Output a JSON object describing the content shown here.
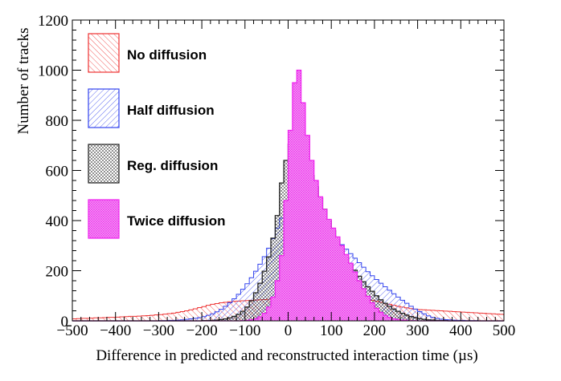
{
  "chart_data": {
    "type": "histogram",
    "title": "",
    "xlabel": "Difference in predicted and reconstructed interaction time (µs)",
    "ylabel": "Number of tracks",
    "xlim": [
      -500,
      500
    ],
    "ylim": [
      0,
      1200
    ],
    "x_ticks": [
      "−500",
      "−400",
      "−300",
      "−200",
      "−100",
      "0",
      "100",
      "200",
      "300",
      "400",
      "500"
    ],
    "y_ticks": [
      "0",
      "200",
      "400",
      "600",
      "800",
      "1000",
      "1200"
    ],
    "grid": false,
    "legend_position": "top-left",
    "bin_width": 10,
    "bin_centers": [
      -495,
      -485,
      -475,
      -465,
      -455,
      -445,
      -435,
      -425,
      -415,
      -405,
      -395,
      -385,
      -375,
      -365,
      -355,
      -345,
      -335,
      -325,
      -315,
      -305,
      -295,
      -285,
      -275,
      -265,
      -255,
      -245,
      -235,
      -225,
      -215,
      -205,
      -195,
      -185,
      -175,
      -165,
      -155,
      -145,
      -135,
      -125,
      -115,
      -105,
      -95,
      -85,
      -75,
      -65,
      -55,
      -45,
      -35,
      -25,
      -15,
      -5,
      5,
      15,
      25,
      35,
      45,
      55,
      65,
      75,
      85,
      95,
      105,
      115,
      125,
      135,
      145,
      155,
      165,
      175,
      185,
      195,
      205,
      215,
      225,
      235,
      245,
      255,
      265,
      275,
      285,
      295,
      305,
      315,
      325,
      335,
      345,
      355,
      365,
      375,
      385,
      395,
      405,
      415,
      425,
      435,
      445,
      455,
      465,
      475,
      485,
      495
    ],
    "series": [
      {
        "name": "No diffusion",
        "color": "#ee3333",
        "values": [
          8,
          9,
          10,
          10,
          11,
          12,
          12,
          13,
          14,
          14,
          15,
          16,
          17,
          18,
          18,
          19,
          20,
          21,
          22,
          24,
          25,
          27,
          29,
          31,
          34,
          37,
          40,
          44,
          48,
          53,
          57,
          62,
          66,
          69,
          72,
          74,
          76,
          78,
          79,
          80,
          81,
          82,
          83,
          84,
          85,
          86,
          87,
          88,
          90,
          92,
          94,
          96,
          98,
          100,
          102,
          104,
          106,
          107,
          108,
          108,
          107,
          106,
          104,
          102,
          100,
          97,
          94,
          90,
          86,
          82,
          78,
          74,
          70,
          66,
          62,
          58,
          55,
          52,
          49,
          47,
          45,
          44,
          43,
          42,
          41,
          40,
          39,
          38,
          37,
          36,
          35,
          34,
          33,
          32,
          31,
          30,
          29,
          28,
          27,
          26
        ]
      },
      {
        "name": "Half diffusion",
        "color": "#3344ee",
        "values": [
          0,
          0,
          0,
          0,
          0,
          0,
          0,
          0,
          0,
          0,
          0,
          0,
          0,
          0,
          0,
          0,
          0,
          0,
          0,
          0,
          1,
          1,
          2,
          2,
          3,
          4,
          6,
          8,
          10,
          13,
          17,
          22,
          28,
          36,
          46,
          58,
          72,
          88,
          106,
          126,
          148,
          172,
          198,
          226,
          256,
          290,
          328,
          370,
          410,
          430,
          440,
          450,
          455,
          448,
          435,
          420,
          405,
          390,
          375,
          358,
          340,
          322,
          304,
          286,
          268,
          250,
          232,
          214,
          196,
          180,
          165,
          150,
          136,
          122,
          108,
          95,
          82,
          70,
          58,
          47,
          37,
          28,
          20,
          14,
          10,
          7,
          5,
          4,
          3,
          2,
          2,
          1,
          1,
          1,
          0,
          0,
          0,
          0,
          0,
          0
        ]
      },
      {
        "name": "Reg. diffusion",
        "color": "#222222",
        "values": [
          0,
          0,
          0,
          0,
          0,
          0,
          0,
          0,
          0,
          0,
          0,
          0,
          0,
          0,
          0,
          0,
          0,
          0,
          0,
          0,
          0,
          0,
          0,
          0,
          0,
          0,
          0,
          0,
          0,
          0,
          1,
          1,
          2,
          3,
          5,
          8,
          12,
          18,
          26,
          38,
          55,
          80,
          112,
          150,
          198,
          255,
          330,
          420,
          550,
          640,
          705,
          720,
          700,
          665,
          625,
          580,
          535,
          490,
          445,
          400,
          360,
          322,
          288,
          256,
          228,
          202,
          178,
          156,
          136,
          118,
          100,
          84,
          70,
          58,
          47,
          38,
          30,
          23,
          17,
          13,
          9,
          6,
          4,
          3,
          2,
          1,
          1,
          0,
          0,
          0,
          0,
          0,
          0,
          0,
          0,
          0,
          0,
          0,
          0,
          0
        ]
      },
      {
        "name": "Twice diffusion",
        "color": "#ee22ee",
        "values": [
          0,
          0,
          0,
          0,
          0,
          0,
          0,
          0,
          0,
          0,
          0,
          0,
          0,
          0,
          0,
          0,
          0,
          0,
          0,
          0,
          0,
          0,
          0,
          0,
          0,
          0,
          0,
          0,
          0,
          0,
          0,
          0,
          0,
          0,
          0,
          0,
          0,
          0,
          0,
          1,
          2,
          4,
          8,
          16,
          30,
          55,
          95,
          160,
          260,
          480,
          760,
          950,
          1000,
          870,
          740,
          640,
          560,
          495,
          445,
          405,
          370,
          335,
          300,
          265,
          230,
          195,
          160,
          128,
          98,
          72,
          50,
          34,
          22,
          14,
          8,
          5,
          3,
          2,
          1,
          1,
          0,
          0,
          0,
          0,
          0,
          0,
          0,
          0,
          0,
          0,
          0,
          0,
          0,
          0,
          0,
          0,
          0,
          0,
          0,
          0
        ]
      }
    ]
  }
}
